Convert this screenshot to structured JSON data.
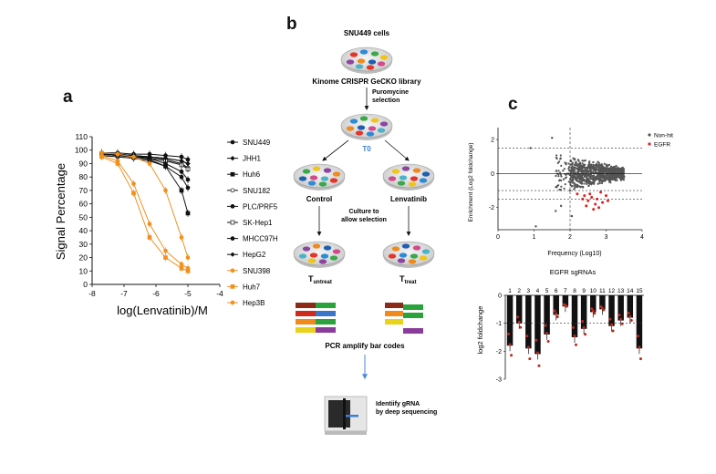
{
  "panel_labels": {
    "a": "a",
    "b": "b",
    "c": "c"
  },
  "chart_data": [
    {
      "type": "line",
      "panel": "a",
      "xlabel": "log(Lenvatinib)/M",
      "ylabel": "Signal Percentage",
      "xlim": [
        -8,
        -4
      ],
      "ylim": [
        0,
        110
      ],
      "xticks": [
        "-8",
        "-7",
        "-6",
        "-5",
        "-4"
      ],
      "yticks": [
        "0",
        "10",
        "20",
        "30",
        "40",
        "50",
        "60",
        "70",
        "80",
        "90",
        "100",
        "110"
      ],
      "x": [
        -7.7,
        -7.2,
        -6.7,
        -6.2,
        -5.7,
        -5.2,
        -5.0
      ],
      "series": [
        {
          "name": "SNU449",
          "color": "#111111",
          "values": [
            98,
            98,
            97,
            97,
            96,
            95,
            93
          ]
        },
        {
          "name": "JHH1",
          "color": "#111111",
          "values": [
            97,
            97,
            96,
            95,
            94,
            92,
            90
          ]
        },
        {
          "name": "Huh6",
          "color": "#111111",
          "values": [
            97,
            96,
            95,
            93,
            88,
            70,
            53
          ]
        },
        {
          "name": "SNU182",
          "color": "#111111",
          "values": [
            98,
            97,
            96,
            95,
            93,
            90,
            87
          ]
        },
        {
          "name": "PLC/PRF5",
          "color": "#111111",
          "values": [
            96,
            95,
            94,
            92,
            88,
            80,
            72
          ]
        },
        {
          "name": "SK-Hep1",
          "color": "#111111",
          "values": [
            97,
            96,
            95,
            94,
            92,
            89,
            86
          ]
        },
        {
          "name": "MHCC97H",
          "color": "#111111",
          "values": [
            98,
            97,
            96,
            94,
            90,
            84,
            78
          ]
        },
        {
          "name": "HepG2",
          "color": "#111111",
          "values": [
            97,
            96,
            96,
            95,
            94,
            92,
            90
          ]
        },
        {
          "name": "SNU398",
          "color": "#f0901e",
          "values": [
            96,
            92,
            75,
            45,
            25,
            15,
            12
          ]
        },
        {
          "name": "Huh7",
          "color": "#f0901e",
          "values": [
            95,
            90,
            68,
            35,
            20,
            12,
            10
          ]
        },
        {
          "name": "Hep3B",
          "color": "#f0901e",
          "values": [
            98,
            97,
            95,
            90,
            70,
            35,
            20
          ]
        }
      ]
    },
    {
      "type": "scatter",
      "panel": "c-top",
      "xlabel": "Frequency (Log10)",
      "ylabel": "Enrichment (Log2 foldchange)",
      "xlim": [
        0,
        4
      ],
      "ylim": [
        -3.3,
        2.7
      ],
      "xticks": [
        "0",
        "1",
        "2",
        "3",
        "4"
      ],
      "yticks": [
        "2",
        "0",
        "-2"
      ],
      "legend": {
        "position": "top-right",
        "entries": [
          {
            "name": "Non-hit",
            "color": "#555555"
          },
          {
            "name": "EGFR",
            "color": "#e02020"
          }
        ]
      },
      "egfr_points": [
        [
          2.2,
          -1.2
        ],
        [
          2.35,
          -1.5
        ],
        [
          2.5,
          -1.6
        ],
        [
          2.6,
          -1.4
        ],
        [
          2.7,
          -1.8
        ],
        [
          2.8,
          -2.0
        ],
        [
          2.9,
          -1.7
        ],
        [
          3.0,
          -1.3
        ],
        [
          2.45,
          -1.9
        ],
        [
          2.75,
          -1.5
        ],
        [
          2.65,
          -2.1
        ],
        [
          2.55,
          -1.2
        ],
        [
          2.85,
          -1.1
        ],
        [
          2.4,
          -1.3
        ],
        [
          3.05,
          -1.6
        ]
      ],
      "outlier_points": [
        [
          0.9,
          1.5
        ],
        [
          1.5,
          2.1
        ],
        [
          1.05,
          -3.1
        ],
        [
          1.6,
          -2.2
        ],
        [
          1.75,
          -1.9
        ],
        [
          2.05,
          -2.5
        ]
      ]
    },
    {
      "type": "bar",
      "panel": "c-bottom",
      "title": "EGFR sgRNAs",
      "ylabel": "log2 foldchange",
      "ylim": [
        -3,
        0
      ],
      "yticks": [
        "0",
        "-1",
        "-2",
        "-3"
      ],
      "categories": [
        "1",
        "2",
        "3",
        "4",
        "5",
        "6",
        "7",
        "8",
        "9",
        "10",
        "11",
        "12",
        "13",
        "14",
        "15"
      ],
      "values": [
        -1.8,
        -1.0,
        -1.9,
        -2.1,
        -1.4,
        -0.7,
        -0.4,
        -1.5,
        -1.2,
        -0.6,
        -0.5,
        -1.1,
        -0.9,
        -0.8,
        -1.9
      ],
      "threshold": -1
    }
  ],
  "diagram": {
    "cells_title": "SNU449 cells",
    "library": "Kinome CRISPR GeCKO library",
    "selection": "Puromycine\nselection",
    "t0": "T0",
    "control": "Control",
    "lenvatinib": "Lenvatinib",
    "culture": "Culture to\nallow selection",
    "t_untreat": "T",
    "t_untreat_sub": "untreat",
    "t_treat": "T",
    "t_treat_sub": "treat",
    "pcr": "PCR amplify bar codes",
    "identify": "Identiify gRNA\nby deep sequencing",
    "colors": {
      "t0_label": "#3a7fd5",
      "arrow": "#4a8ad8",
      "bar_red": "#cc2b1d",
      "bar_orange": "#f08a1c",
      "bar_blue": "#3a75c8",
      "bar_green": "#2aa33c",
      "bar_yellow": "#e8d21a",
      "bar_purple": "#8a3c9a",
      "bar_brown": "#8a2a18"
    }
  }
}
